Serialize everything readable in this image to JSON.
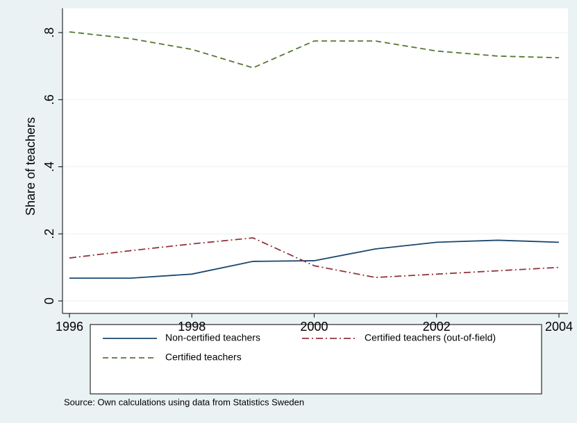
{
  "chart_data": {
    "type": "line",
    "y_label": "Share of teachers",
    "source": "Source: Own calculations using data from Statistics Sweden",
    "x": [
      1996,
      1997,
      1998,
      1999,
      2000,
      2001,
      2002,
      2003,
      2004
    ],
    "xlim": [
      1996,
      2004
    ],
    "xticks": [
      1996,
      1998,
      2000,
      2002,
      2004
    ],
    "ylim": [
      0,
      0.8
    ],
    "yticks": [
      0,
      {
        "value": 0.2,
        "label": ".2"
      },
      {
        "value": 0.4,
        "label": ".4"
      },
      {
        "value": 0.6,
        "label": ".6"
      },
      {
        "value": 0.8,
        "label": ".8"
      }
    ],
    "grid": true,
    "series": [
      {
        "name": "Non-certified teachers",
        "color": "#1a476f",
        "style": "solid",
        "values": [
          0.068,
          0.068,
          0.08,
          0.118,
          0.12,
          0.155,
          0.175,
          0.181,
          0.175
        ]
      },
      {
        "name": "Certified teachers (out-of-field)",
        "color": "#90353b",
        "style": "dashdot",
        "values": [
          0.128,
          0.15,
          0.17,
          0.188,
          0.105,
          0.07,
          0.08,
          0.09,
          0.1
        ]
      },
      {
        "name": "Certified teachers",
        "color": "#55752f",
        "style": "dash",
        "values": [
          0.802,
          0.782,
          0.75,
          0.695,
          0.775,
          0.775,
          0.745,
          0.73,
          0.725
        ]
      }
    ]
  }
}
